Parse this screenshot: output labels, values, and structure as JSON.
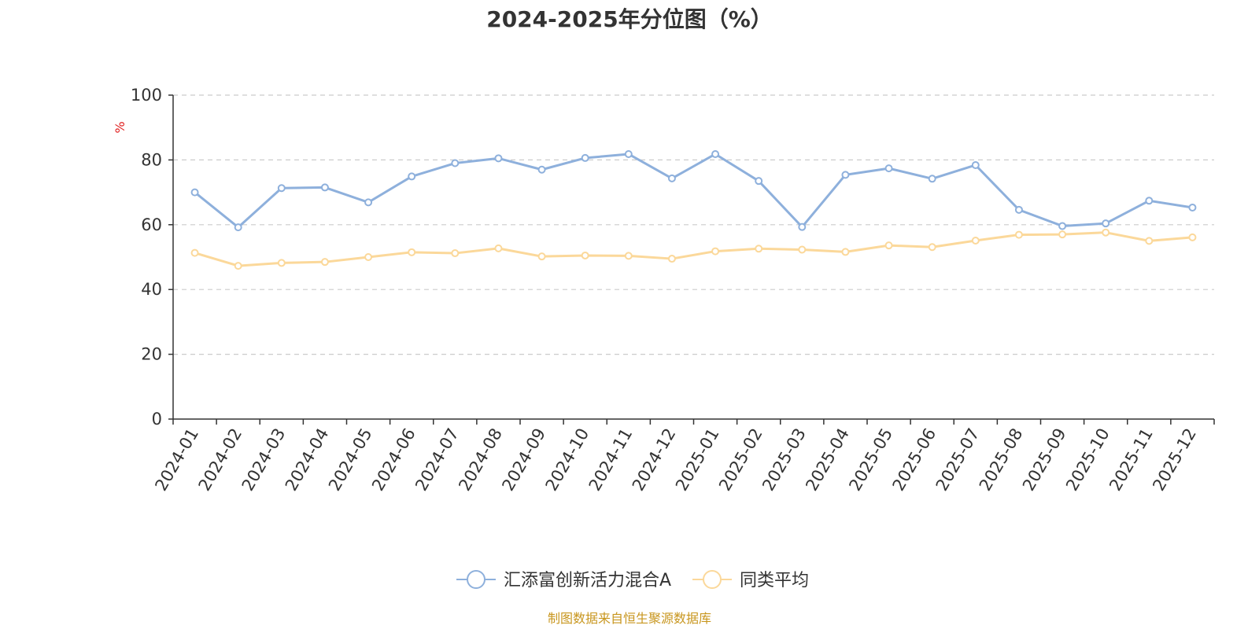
{
  "chart_data": {
    "type": "line",
    "title": "2024-2025年分位图（%）",
    "ylabel": "%",
    "xlabel": "",
    "ylim": [
      0,
      100
    ],
    "yticks": [
      0,
      20,
      40,
      60,
      80,
      100
    ],
    "grid": true,
    "legend_position": "bottom",
    "categories": [
      "2024-01",
      "2024-02",
      "2024-03",
      "2024-04",
      "2024-05",
      "2024-06",
      "2024-07",
      "2024-08",
      "2024-09",
      "2024-10",
      "2024-11",
      "2024-12",
      "2025-01",
      "2025-02",
      "2025-03",
      "2025-04",
      "2025-05",
      "2025-06",
      "2025-07",
      "2025-08",
      "2025-09",
      "2025-10",
      "2025-11",
      "2025-12"
    ],
    "series": [
      {
        "name": "汇添富创新活力混合A",
        "color": "#8eb0dc",
        "values": [
          70.0,
          59.2,
          71.3,
          71.5,
          66.9,
          74.9,
          79.0,
          80.5,
          77.0,
          80.6,
          81.8,
          74.3,
          81.8,
          73.5,
          59.3,
          75.4,
          77.4,
          74.2,
          78.4,
          64.6,
          59.6,
          60.4,
          67.4,
          65.3
        ]
      },
      {
        "name": "同类平均",
        "color": "#fbd89a",
        "values": [
          51.3,
          47.3,
          48.2,
          48.5,
          50.0,
          51.5,
          51.2,
          52.7,
          50.2,
          50.5,
          50.4,
          49.5,
          51.8,
          52.6,
          52.3,
          51.6,
          53.6,
          53.1,
          55.1,
          56.9,
          57.0,
          57.6,
          55.0,
          56.1
        ]
      }
    ],
    "source": "制图数据来自恒生聚源数据库"
  },
  "colors": {
    "text": "#333333",
    "axis": "#333333",
    "grid": "#cccccc",
    "unit": "#e02020",
    "source": "#c8961e"
  }
}
